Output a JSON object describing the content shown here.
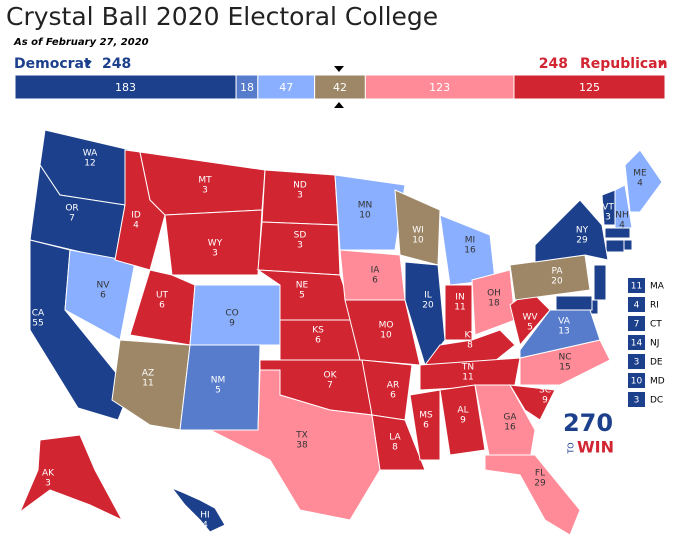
{
  "header": {
    "title": "Crystal Ball 2020 Electoral College",
    "subtitle": "As of February 27, 2020"
  },
  "summary": {
    "democrat": {
      "label": "Democrat",
      "total": 248,
      "color": "#1c408c"
    },
    "republican": {
      "label": "Republican",
      "total": 248,
      "color": "#d22532"
    },
    "segments": [
      {
        "value": 183,
        "color": "#1c408c"
      },
      {
        "value": 18,
        "color": "#577ccc"
      },
      {
        "value": 47,
        "color": "#8aafff"
      },
      {
        "value": 42,
        "color": "#9e8767"
      },
      {
        "value": 123,
        "color": "#ff8b98"
      },
      {
        "value": 125,
        "color": "#d22532"
      }
    ]
  },
  "states": [
    {
      "abbr": "WA",
      "votes": 12,
      "color": "#1c408c"
    },
    {
      "abbr": "OR",
      "votes": 7,
      "color": "#1c408c"
    },
    {
      "abbr": "CA",
      "votes": 55,
      "color": "#1c408c"
    },
    {
      "abbr": "NV",
      "votes": 6,
      "color": "#8aafff"
    },
    {
      "abbr": "ID",
      "votes": 4,
      "color": "#d22532"
    },
    {
      "abbr": "MT",
      "votes": 3,
      "color": "#d22532"
    },
    {
      "abbr": "WY",
      "votes": 3,
      "color": "#d22532"
    },
    {
      "abbr": "UT",
      "votes": 6,
      "color": "#d22532"
    },
    {
      "abbr": "AZ",
      "votes": 11,
      "color": "#9e8767"
    },
    {
      "abbr": "CO",
      "votes": 9,
      "color": "#8aafff"
    },
    {
      "abbr": "NM",
      "votes": 5,
      "color": "#577ccc"
    },
    {
      "abbr": "ND",
      "votes": 3,
      "color": "#d22532"
    },
    {
      "abbr": "SD",
      "votes": 3,
      "color": "#d22532"
    },
    {
      "abbr": "NE",
      "votes": 5,
      "color": "#d22532"
    },
    {
      "abbr": "KS",
      "votes": 6,
      "color": "#d22532"
    },
    {
      "abbr": "OK",
      "votes": 7,
      "color": "#d22532"
    },
    {
      "abbr": "TX",
      "votes": 38,
      "color": "#ff8b98"
    },
    {
      "abbr": "MN",
      "votes": 10,
      "color": "#8aafff"
    },
    {
      "abbr": "IA",
      "votes": 6,
      "color": "#ff8b98"
    },
    {
      "abbr": "MO",
      "votes": 10,
      "color": "#d22532"
    },
    {
      "abbr": "AR",
      "votes": 6,
      "color": "#d22532"
    },
    {
      "abbr": "LA",
      "votes": 8,
      "color": "#d22532"
    },
    {
      "abbr": "WI",
      "votes": 10,
      "color": "#9e8767"
    },
    {
      "abbr": "IL",
      "votes": 20,
      "color": "#1c408c"
    },
    {
      "abbr": "MI",
      "votes": 16,
      "color": "#8aafff"
    },
    {
      "abbr": "IN",
      "votes": 11,
      "color": "#d22532"
    },
    {
      "abbr": "OH",
      "votes": 18,
      "color": "#ff8b98"
    },
    {
      "abbr": "KY",
      "votes": 8,
      "color": "#d22532"
    },
    {
      "abbr": "TN",
      "votes": 11,
      "color": "#d22532"
    },
    {
      "abbr": "MS",
      "votes": 6,
      "color": "#d22532"
    },
    {
      "abbr": "AL",
      "votes": 9,
      "color": "#d22532"
    },
    {
      "abbr": "GA",
      "votes": 16,
      "color": "#ff8b98"
    },
    {
      "abbr": "FL",
      "votes": 29,
      "color": "#ff8b98"
    },
    {
      "abbr": "SC",
      "votes": 9,
      "color": "#d22532"
    },
    {
      "abbr": "NC",
      "votes": 15,
      "color": "#ff8b98"
    },
    {
      "abbr": "VA",
      "votes": 13,
      "color": "#577ccc"
    },
    {
      "abbr": "WV",
      "votes": 5,
      "color": "#d22532"
    },
    {
      "abbr": "PA",
      "votes": 20,
      "color": "#9e8767"
    },
    {
      "abbr": "NY",
      "votes": 29,
      "color": "#1c408c"
    },
    {
      "abbr": "VT",
      "votes": 3,
      "color": "#1c408c"
    },
    {
      "abbr": "NH",
      "votes": 4,
      "color": "#8aafff"
    },
    {
      "abbr": "ME",
      "votes": 4,
      "color": "#8aafff"
    },
    {
      "abbr": "AK",
      "votes": 3,
      "color": "#d22532"
    },
    {
      "abbr": "HI",
      "votes": 4,
      "color": "#1c408c"
    }
  ],
  "small_states": [
    {
      "abbr": "MA",
      "votes": 11,
      "color": "#1c408c"
    },
    {
      "abbr": "RI",
      "votes": 4,
      "color": "#1c408c"
    },
    {
      "abbr": "CT",
      "votes": 7,
      "color": "#1c408c"
    },
    {
      "abbr": "NJ",
      "votes": 14,
      "color": "#1c408c"
    },
    {
      "abbr": "DE",
      "votes": 3,
      "color": "#1c408c"
    },
    {
      "abbr": "MD",
      "votes": 10,
      "color": "#1c408c"
    },
    {
      "abbr": "DC",
      "votes": 3,
      "color": "#1c408c"
    }
  ],
  "logo": {
    "number": "270",
    "to": "TO",
    "win": "WIN"
  }
}
